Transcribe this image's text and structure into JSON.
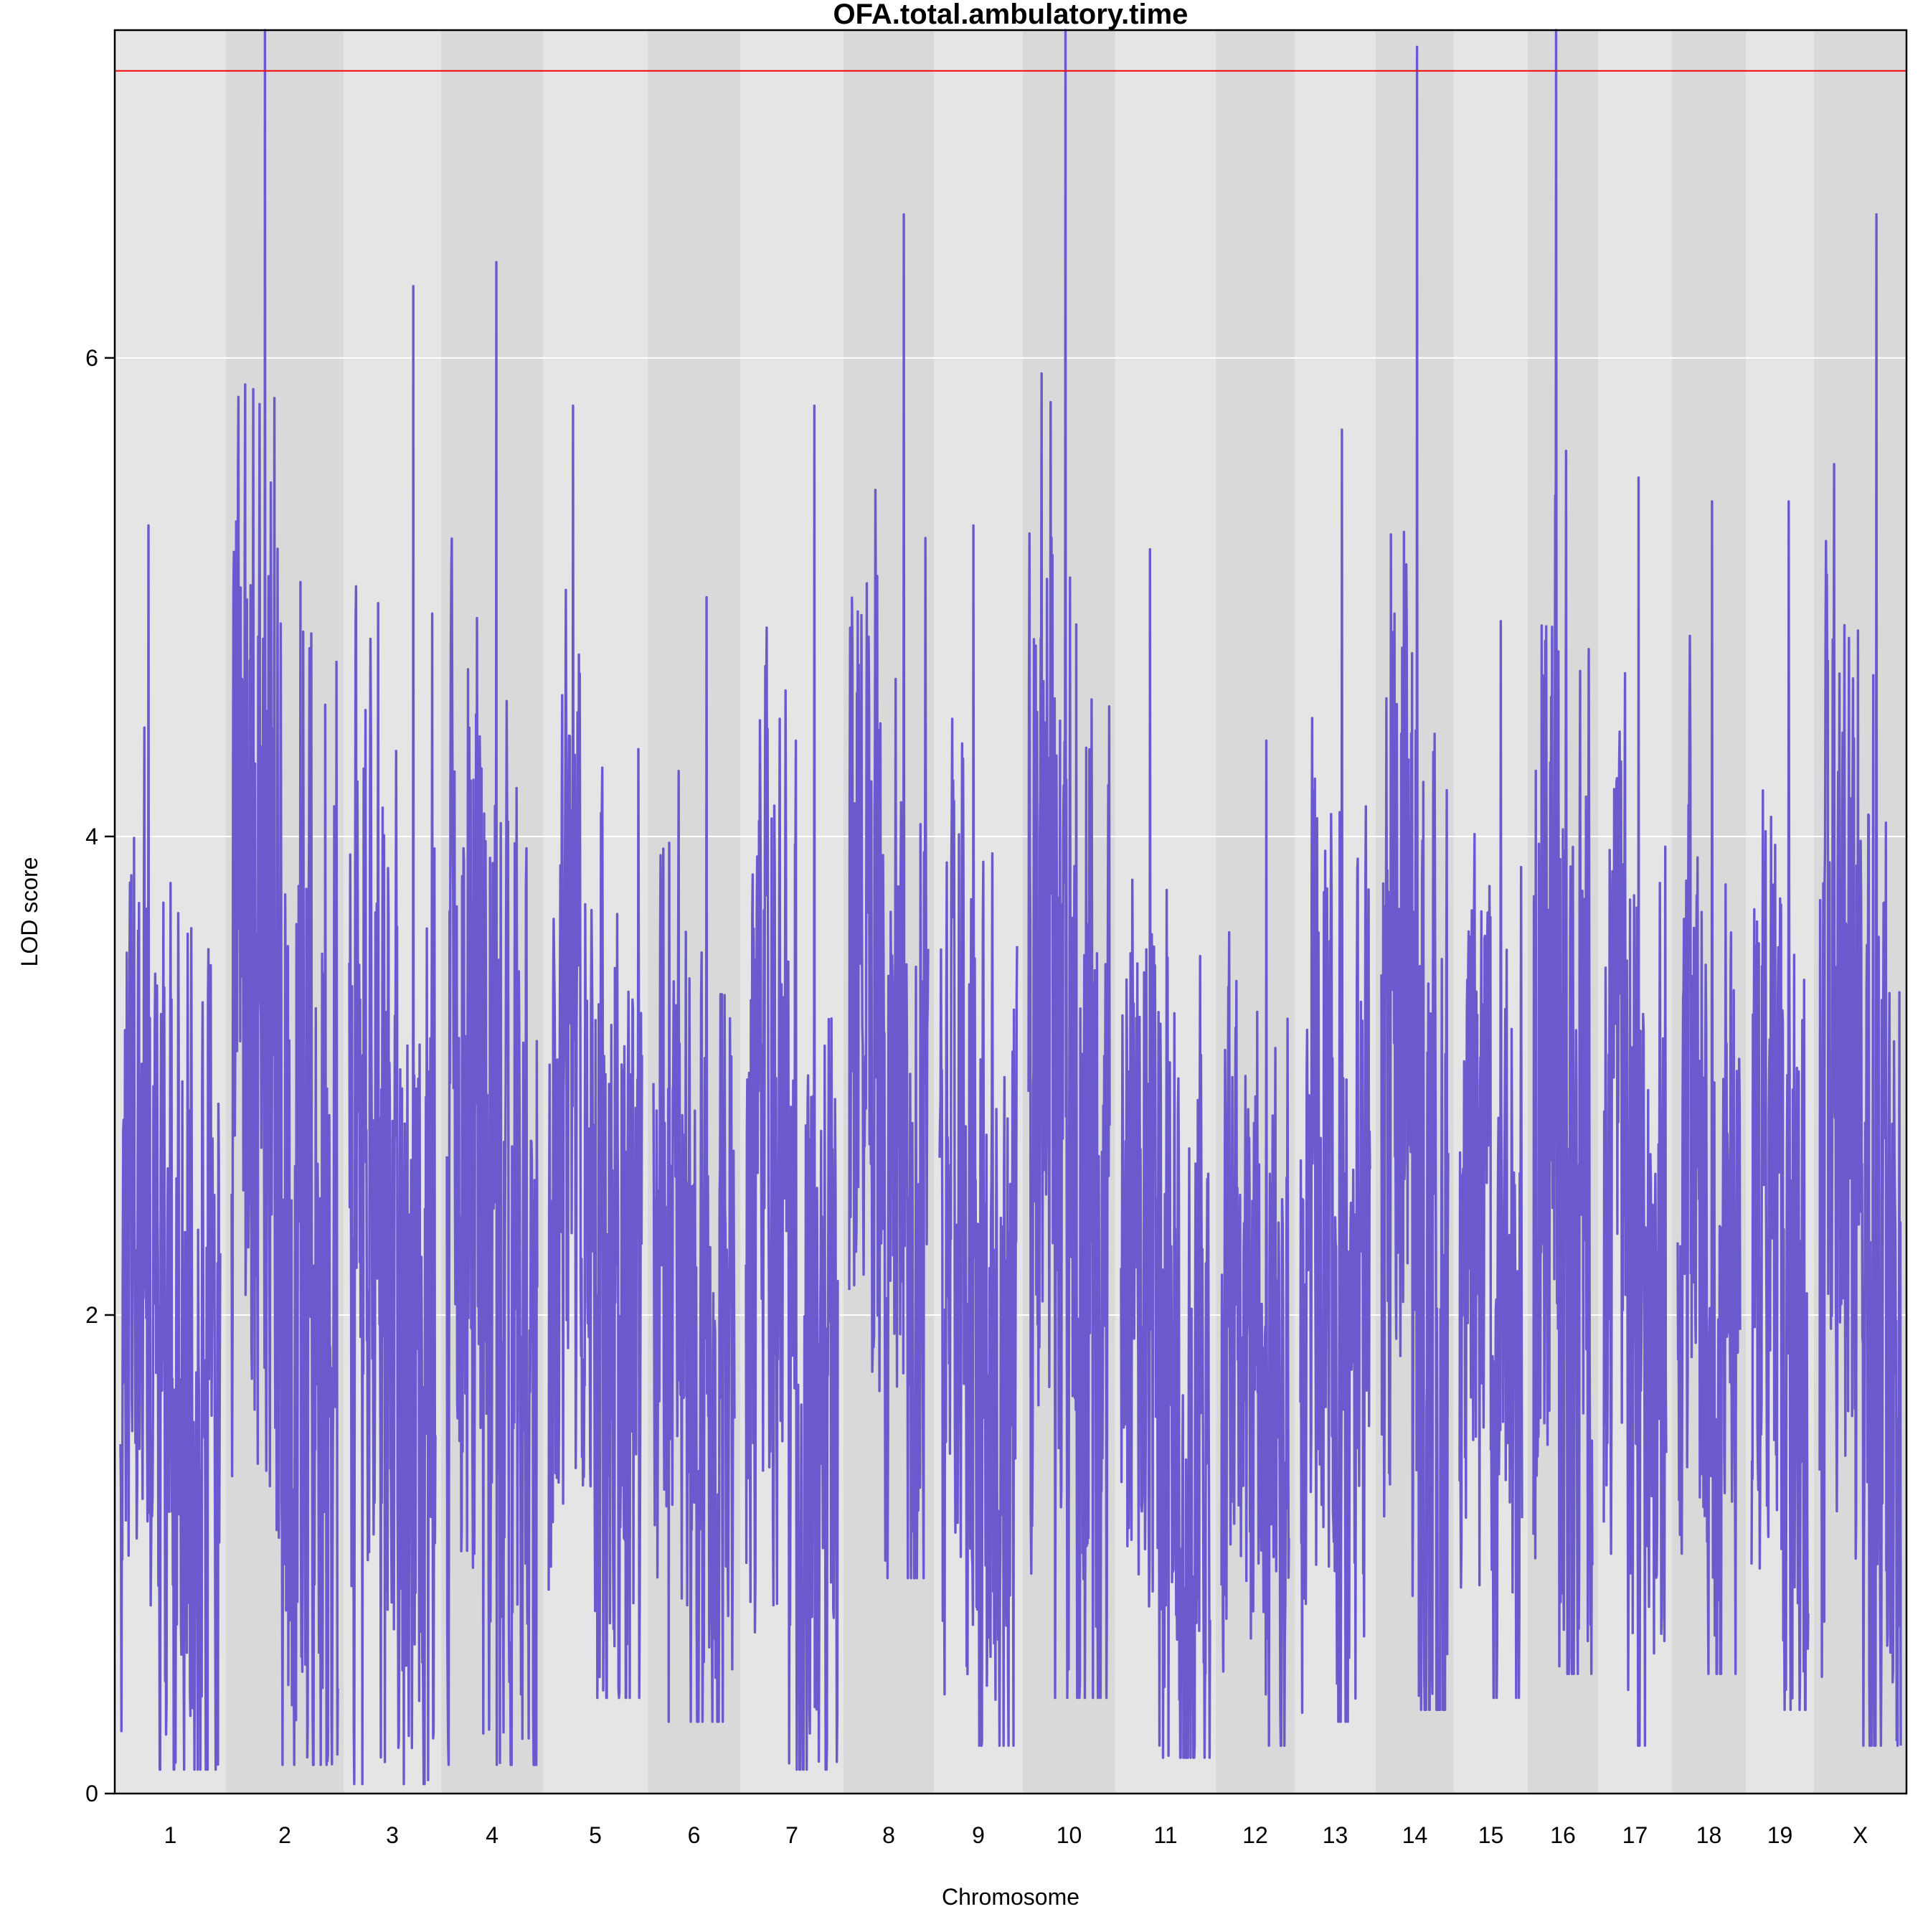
{
  "chart_data": {
    "type": "line",
    "title": "OFA.total.ambulatory.time",
    "xlabel": "Chromosome",
    "ylabel": "LOD score",
    "ylim": [
      0,
      7.37
    ],
    "y_ticks": [
      "0",
      "2",
      "4",
      "6"
    ],
    "threshold": 7.2,
    "grid": true,
    "colors": {
      "line": "#6A5ACD",
      "threshold": "#FF0000",
      "band_light": "#E5E5E5",
      "band_dark": "#D9D9D9",
      "gridline": "#FFFFFF"
    },
    "chromosomes": [
      {
        "label": "1",
        "min": 0.1,
        "max": 5.3
      },
      {
        "label": "2",
        "min": 0.12,
        "max": 7.37
      },
      {
        "label": "3",
        "min": 0.04,
        "max": 6.3
      },
      {
        "label": "4",
        "min": 0.12,
        "max": 6.4
      },
      {
        "label": "5",
        "min": 0.4,
        "max": 5.8
      },
      {
        "label": "6",
        "min": 0.3,
        "max": 5.0
      },
      {
        "label": "7",
        "min": 0.1,
        "max": 5.8
      },
      {
        "label": "8",
        "min": 0.9,
        "max": 6.6
      },
      {
        "label": "9",
        "min": 0.2,
        "max": 5.3
      },
      {
        "label": "10",
        "min": 0.4,
        "max": 7.37
      },
      {
        "label": "11",
        "min": 0.15,
        "max": 5.2
      },
      {
        "label": "12",
        "min": 0.2,
        "max": 4.4
      },
      {
        "label": "13",
        "min": 0.3,
        "max": 5.7
      },
      {
        "label": "14",
        "min": 0.35,
        "max": 7.3
      },
      {
        "label": "15",
        "min": 0.4,
        "max": 4.9
      },
      {
        "label": "16",
        "min": 0.5,
        "max": 7.37
      },
      {
        "label": "17",
        "min": 0.2,
        "max": 5.5
      },
      {
        "label": "18",
        "min": 0.5,
        "max": 5.4
      },
      {
        "label": "19",
        "min": 0.35,
        "max": 5.4
      },
      {
        "label": "X",
        "min": 0.2,
        "max": 6.6
      }
    ]
  }
}
